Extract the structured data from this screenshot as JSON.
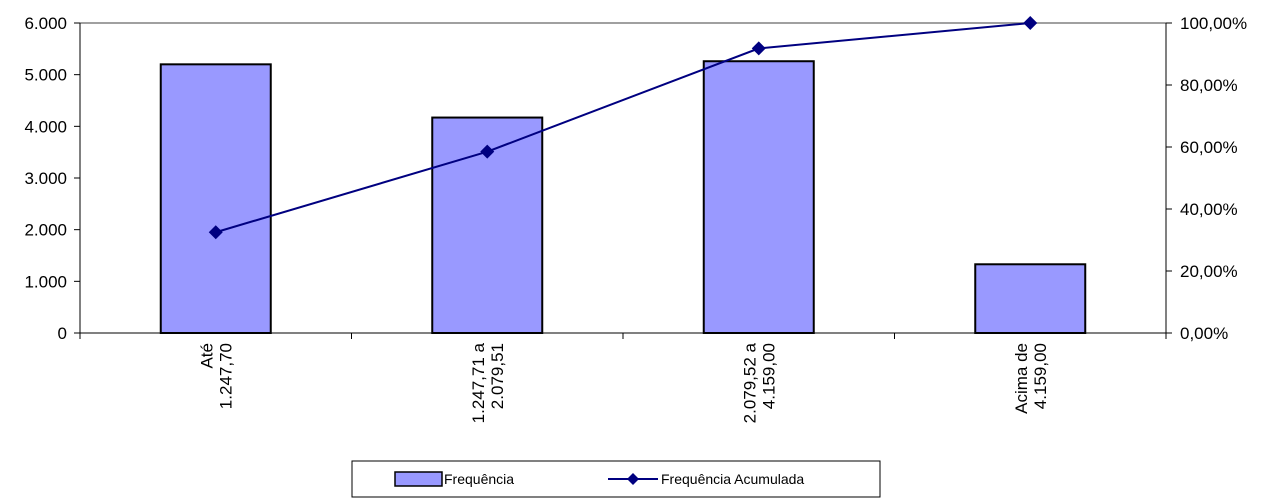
{
  "chart_data": {
    "type": "bar",
    "categories": [
      [
        "Até",
        "1.247,70"
      ],
      [
        "1.247,71 a",
        "2.079,51"
      ],
      [
        "2.079,52 a",
        "4.159,00"
      ],
      [
        "Acima de",
        "4.159,00"
      ]
    ],
    "series": [
      {
        "name": "Frequência",
        "type": "bar",
        "axis": "left",
        "values": [
          5200,
          4170,
          5260,
          1330
        ]
      },
      {
        "name": "Frequência Acumulada",
        "type": "line",
        "axis": "right",
        "values": [
          0.325,
          0.585,
          0.918,
          1.0
        ]
      }
    ],
    "y_left": {
      "ylim": [
        0,
        6000
      ],
      "ticks": [
        "0",
        "1.000",
        "2.000",
        "3.000",
        "4.000",
        "5.000",
        "6.000"
      ]
    },
    "y_right": {
      "ylim": [
        0,
        1
      ],
      "ticks": [
        "0,00%",
        "20,00%",
        "40,00%",
        "60,00%",
        "80,00%",
        "100,00%"
      ]
    },
    "grid": false,
    "legend_position": "bottom",
    "colors": {
      "bar_fill": "#9999ff",
      "bar_stroke": "#000000",
      "line": "#000080"
    }
  }
}
